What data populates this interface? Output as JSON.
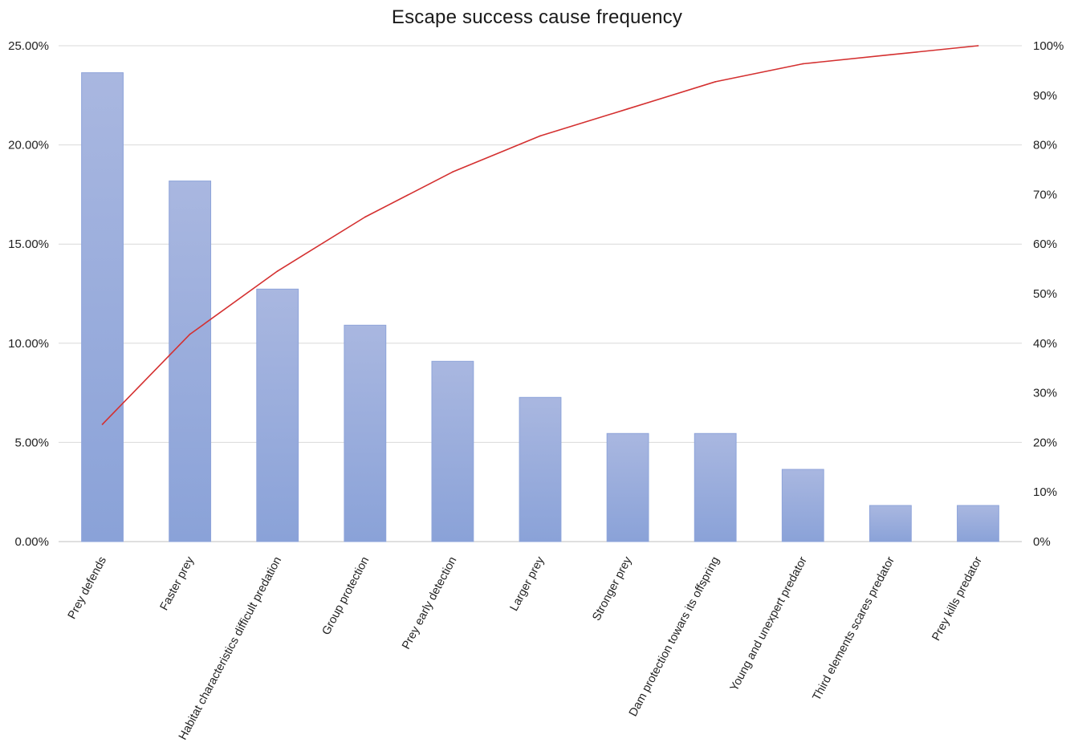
{
  "chart_data": {
    "type": "bar",
    "title": "Escape success cause frequency",
    "xlabel": "",
    "ylabel": "",
    "categories": [
      "Prey defends",
      "Faster prey",
      "Habitat characteristics difficult predation",
      "Group protection",
      "Prey early detection",
      "Larger prey",
      "Stronger prey",
      "Dam protection towars its offspring",
      "Young and unexpert predator",
      "Third elements scares predator",
      "Prey kills predator"
    ],
    "series": [
      {
        "type": "bar",
        "axis": "left",
        "values": [
          23.64,
          18.18,
          12.73,
          10.91,
          9.09,
          7.27,
          5.45,
          5.45,
          3.64,
          1.82,
          1.82
        ]
      },
      {
        "type": "line",
        "axis": "right",
        "values": [
          23.64,
          41.82,
          54.55,
          65.45,
          74.55,
          81.82,
          87.27,
          92.73,
          96.36,
          98.18,
          100.0
        ]
      }
    ],
    "ylim_left": [
      0,
      25
    ],
    "ylim_right": [
      0,
      100
    ],
    "left_ticks": [
      "0.00%",
      "5.00%",
      "10.00%",
      "15.00%",
      "20.00%",
      "25.00%"
    ],
    "right_ticks": [
      "0%",
      "10%",
      "20%",
      "30%",
      "40%",
      "50%",
      "60%",
      "70%",
      "80%",
      "90%",
      "100%"
    ],
    "grid": true,
    "legend": "none",
    "colors": {
      "bar_top": "#a9b7e0",
      "bar_bottom": "#8aa2d8",
      "bar_stroke": "#8ea4da",
      "line": "#d43030",
      "grid": "#d9d9d9",
      "axis": "#bfbfbf"
    }
  }
}
